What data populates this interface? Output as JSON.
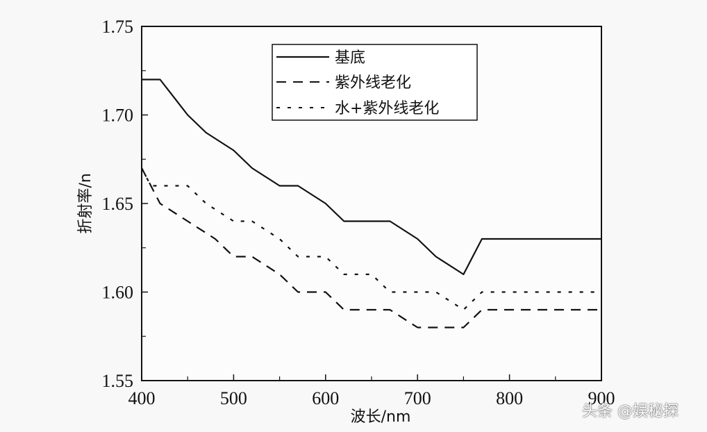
{
  "chart_data": {
    "type": "line",
    "title": "",
    "xlabel": "波长/nm",
    "ylabel": "折射率/n",
    "xlim": [
      400,
      900
    ],
    "ylim": [
      1.55,
      1.75
    ],
    "xticks": [
      "400",
      "500",
      "600",
      "700",
      "800",
      "900"
    ],
    "yticks": [
      "1.55",
      "1.60",
      "1.65",
      "1.70",
      "1.75"
    ],
    "grid": false,
    "legend_position": "upper center",
    "series": [
      {
        "name": "基底",
        "style": "solid",
        "x": [
          400,
          420,
          450,
          470,
          500,
          520,
          550,
          570,
          600,
          620,
          670,
          700,
          720,
          750,
          770,
          900
        ],
        "values": [
          1.72,
          1.72,
          1.7,
          1.69,
          1.68,
          1.67,
          1.66,
          1.66,
          1.65,
          1.64,
          1.64,
          1.63,
          1.62,
          1.61,
          1.63,
          1.63
        ]
      },
      {
        "name": "紫外线老化",
        "style": "dashed",
        "x": [
          400,
          420,
          450,
          480,
          500,
          520,
          550,
          570,
          600,
          620,
          670,
          700,
          750,
          770,
          900
        ],
        "values": [
          1.67,
          1.65,
          1.64,
          1.63,
          1.62,
          1.62,
          1.61,
          1.6,
          1.6,
          1.59,
          1.59,
          1.58,
          1.58,
          1.59,
          1.59
        ]
      },
      {
        "name": "水+紫外线老化",
        "style": "dotted",
        "x": [
          400,
          410,
          450,
          470,
          500,
          520,
          550,
          570,
          600,
          620,
          650,
          670,
          720,
          750,
          770,
          900
        ],
        "values": [
          1.67,
          1.66,
          1.66,
          1.65,
          1.64,
          1.64,
          1.63,
          1.62,
          1.62,
          1.61,
          1.61,
          1.6,
          1.6,
          1.59,
          1.6,
          1.6
        ]
      }
    ]
  },
  "watermark": "头条 @娱秘探"
}
